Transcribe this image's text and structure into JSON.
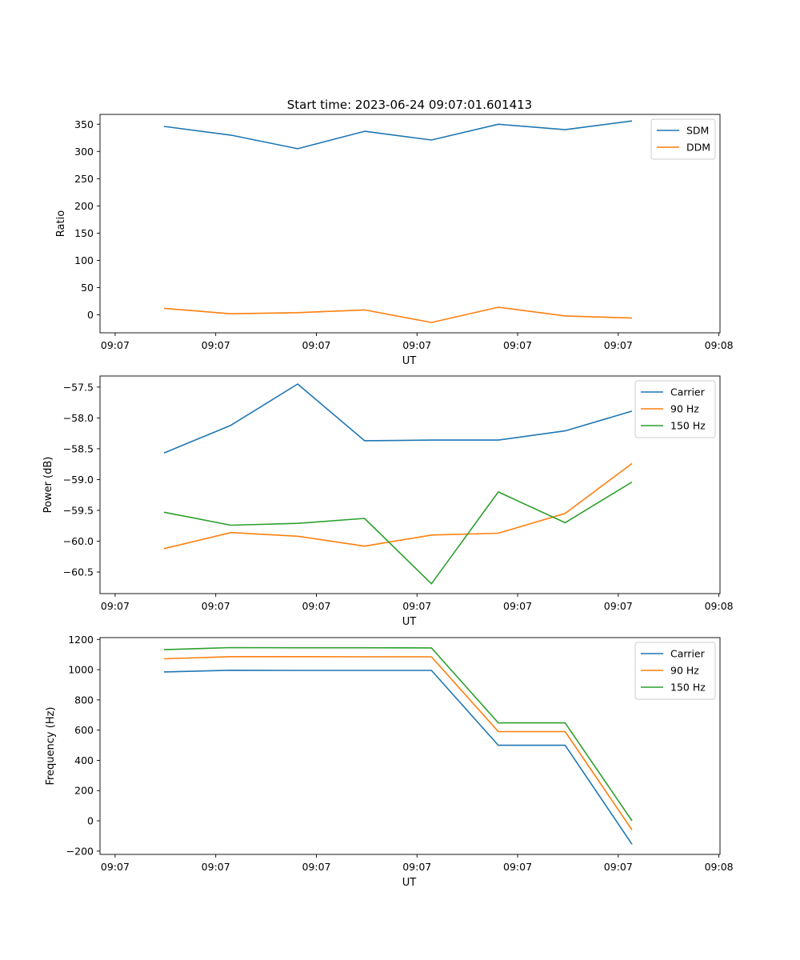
{
  "figure": {
    "suptitle": "Start time: 2023-06-24 09:07:01.601413"
  },
  "chart_data": [
    {
      "type": "line",
      "xlabel": "UT",
      "ylabel": "Ratio",
      "x_tick_labels": [
        "09:07",
        "09:07",
        "09:07",
        "09:07",
        "09:07",
        "09:07",
        "09:08"
      ],
      "y_ticks": [
        0,
        50,
        100,
        150,
        200,
        250,
        300,
        350
      ],
      "ylim": [
        -33,
        368
      ],
      "legend": "top-right",
      "series": [
        {
          "name": "SDM",
          "color": "#1f77b4",
          "values": [
            346,
            330,
            305,
            337,
            321,
            350,
            340,
            356
          ]
        },
        {
          "name": "DDM",
          "color": "#ff7f0e",
          "values": [
            12,
            2,
            4,
            9,
            -14,
            14,
            -2,
            -6
          ]
        }
      ]
    },
    {
      "type": "line",
      "xlabel": "UT",
      "ylabel": "Power (dB)",
      "x_tick_labels": [
        "09:07",
        "09:07",
        "09:07",
        "09:07",
        "09:07",
        "09:07",
        "09:08"
      ],
      "y_ticks": [
        -60.5,
        -60.0,
        -59.5,
        -59.0,
        -58.5,
        -58.0,
        -57.5
      ],
      "y_tick_labels": [
        "−60.5",
        "−60.0",
        "−59.5",
        "−59.0",
        "−58.5",
        "−58.0",
        "−57.5"
      ],
      "ylim": [
        -60.85,
        -57.32
      ],
      "legend": "top-right",
      "series": [
        {
          "name": "Carrier",
          "color": "#1f77b4",
          "values": [
            -58.57,
            -58.12,
            -57.45,
            -58.37,
            -58.36,
            -58.36,
            -58.21,
            -57.89
          ]
        },
        {
          "name": "90 Hz",
          "color": "#ff7f0e",
          "values": [
            -60.12,
            -59.86,
            -59.92,
            -60.08,
            -59.9,
            -59.87,
            -59.55,
            -58.74
          ]
        },
        {
          "name": "150 Hz",
          "color": "#2ca02c",
          "values": [
            -59.53,
            -59.74,
            -59.71,
            -59.63,
            -60.69,
            -59.2,
            -59.7,
            -59.04
          ]
        }
      ]
    },
    {
      "type": "line",
      "xlabel": "UT",
      "ylabel": "Frequency (Hz)",
      "x_tick_labels": [
        "09:07",
        "09:07",
        "09:07",
        "09:07",
        "09:07",
        "09:07",
        "09:08"
      ],
      "y_ticks": [
        -200,
        0,
        200,
        400,
        600,
        800,
        1000,
        1200
      ],
      "y_tick_labels": [
        "−200",
        "0",
        "200",
        "400",
        "600",
        "800",
        "1000",
        "1200"
      ],
      "ylim": [
        -222,
        1212
      ],
      "legend": "top-right",
      "series": [
        {
          "name": "Carrier",
          "color": "#1f77b4",
          "values": [
            985,
            996,
            995,
            995,
            995,
            500,
            500,
            -155
          ]
        },
        {
          "name": "90 Hz",
          "color": "#ff7f0e",
          "values": [
            1072,
            1086,
            1086,
            1085,
            1085,
            590,
            590,
            -60
          ]
        },
        {
          "name": "150 Hz",
          "color": "#2ca02c",
          "values": [
            1132,
            1146,
            1145,
            1145,
            1144,
            648,
            648,
            0
          ]
        }
      ]
    }
  ]
}
